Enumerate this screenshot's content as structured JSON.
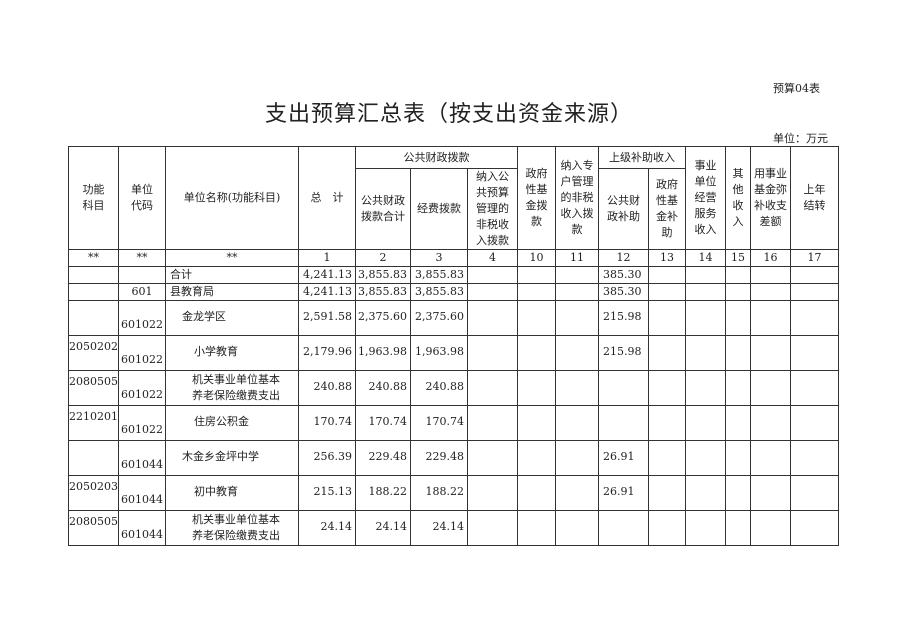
{
  "tag": "预算04表",
  "title": "支出预算汇总表（按支出资金来源）",
  "unit": "单位：万元",
  "headers": {
    "func": "功能\n科目",
    "code": "单位\n代码",
    "name": "单位名称(功能科目)",
    "total": "总　计",
    "gg": "公共财政拨款",
    "gg_sum": "公共财政\n拨款合计",
    "jf": "经费拨款",
    "nr": "纳入公\n共预算\n管理的\n非税收\n入拨款",
    "zf": "政府\n性基\n金拨\n款",
    "nrzh": "纳入专\n户管理\n的非税\n收入拨\n款",
    "sj": "上级补助收入",
    "sj_gg": "公共财\n政补助",
    "sj_zf": "政府\n性基\n金补\n助",
    "sy": "事业\n单位\n经营\n服务\n收入",
    "qt": "其\n他\n收\n入",
    "yy": "用事业\n基金弥\n补收支\n差额",
    "sn": "上年\n结转"
  },
  "index_row": [
    "**",
    "**",
    "**",
    "1",
    "2",
    "3",
    "4",
    "10",
    "11",
    "12",
    "13",
    "14",
    "15",
    "16",
    "17"
  ],
  "rows": [
    {
      "func": "",
      "code": "601",
      "name": "合计",
      "total": "4,241.13",
      "c2": "3,855.83",
      "c3": "3,855.83",
      "c12": "385.30",
      "c13": "",
      "single": true,
      "blankcode": true
    },
    {
      "func": "",
      "code": "601",
      "name": "县教育局",
      "total": "4,241.13",
      "c2": "3,855.83",
      "c3": "3,855.83",
      "c12": "385.30",
      "single": true
    },
    {
      "func": "",
      "code": "601022",
      "name": "金龙学区",
      "total": "2,591.58",
      "c2": "2,375.60",
      "c3": "2,375.60",
      "c12": "215.98"
    },
    {
      "func": "2050202",
      "code": "601022",
      "name": "小学教育",
      "total": "2,179.96",
      "c2": "1,963.98",
      "c3": "1,963.98",
      "c12": "215.98"
    },
    {
      "func": "2080505",
      "code": "601022",
      "name": "机关事业单位基本\n养老保险缴费支出",
      "total": "240.88",
      "c2": "240.88",
      "c3": "240.88",
      "c12": ""
    },
    {
      "func": "2210201",
      "code": "601022",
      "name": "住房公积金",
      "total": "170.74",
      "c2": "170.74",
      "c3": "170.74",
      "c12": ""
    },
    {
      "func": "",
      "code": "601044",
      "name": "木金乡金坪中学",
      "total": "256.39",
      "c2": "229.48",
      "c3": "229.48",
      "c12": "26.91"
    },
    {
      "func": "2050203",
      "code": "601044",
      "name": "初中教育",
      "total": "215.13",
      "c2": "188.22",
      "c3": "188.22",
      "c12": "26.91"
    },
    {
      "func": "2080505",
      "code": "601044",
      "name": "机关事业单位基本\n养老保险缴费支出",
      "total": "24.14",
      "c2": "24.14",
      "c3": "24.14",
      "c12": ""
    }
  ]
}
